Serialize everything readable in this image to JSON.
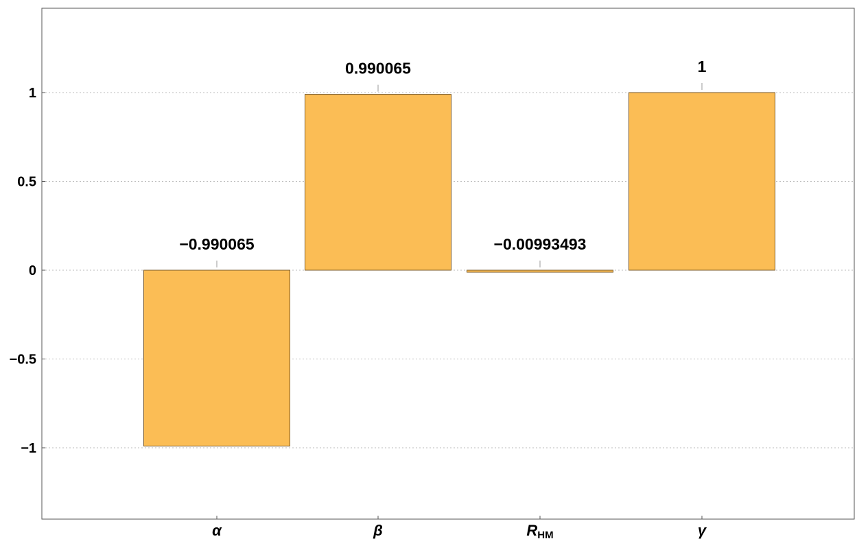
{
  "chart_data": {
    "type": "bar",
    "title": "",
    "xlabel": "",
    "ylabel": "",
    "categories": [
      {
        "main": "α",
        "sub": ""
      },
      {
        "main": "β",
        "sub": ""
      },
      {
        "main": "R",
        "sub": "HM"
      },
      {
        "main": "γ",
        "sub": ""
      }
    ],
    "values": [
      -0.990065,
      0.990065,
      -0.00993493,
      1
    ],
    "data_labels": [
      "−0.990065",
      "0.990065",
      "−0.00993493",
      "1"
    ],
    "ylim": [
      -1.4,
      1.4
    ],
    "yticks": [
      {
        "value": 1,
        "label": "1"
      },
      {
        "value": 0.5,
        "label": "0.5"
      },
      {
        "value": 0,
        "label": "0"
      },
      {
        "value": -0.5,
        "label": "−0.5"
      },
      {
        "value": -1,
        "label": "−1"
      }
    ],
    "grid": "horizontal dotted",
    "legend": "none",
    "colors": {
      "bar_fill": "#fbbd55",
      "bar_stroke": "#7a5a2a",
      "axis": "#555555",
      "grid": "#bbbbbb"
    }
  }
}
